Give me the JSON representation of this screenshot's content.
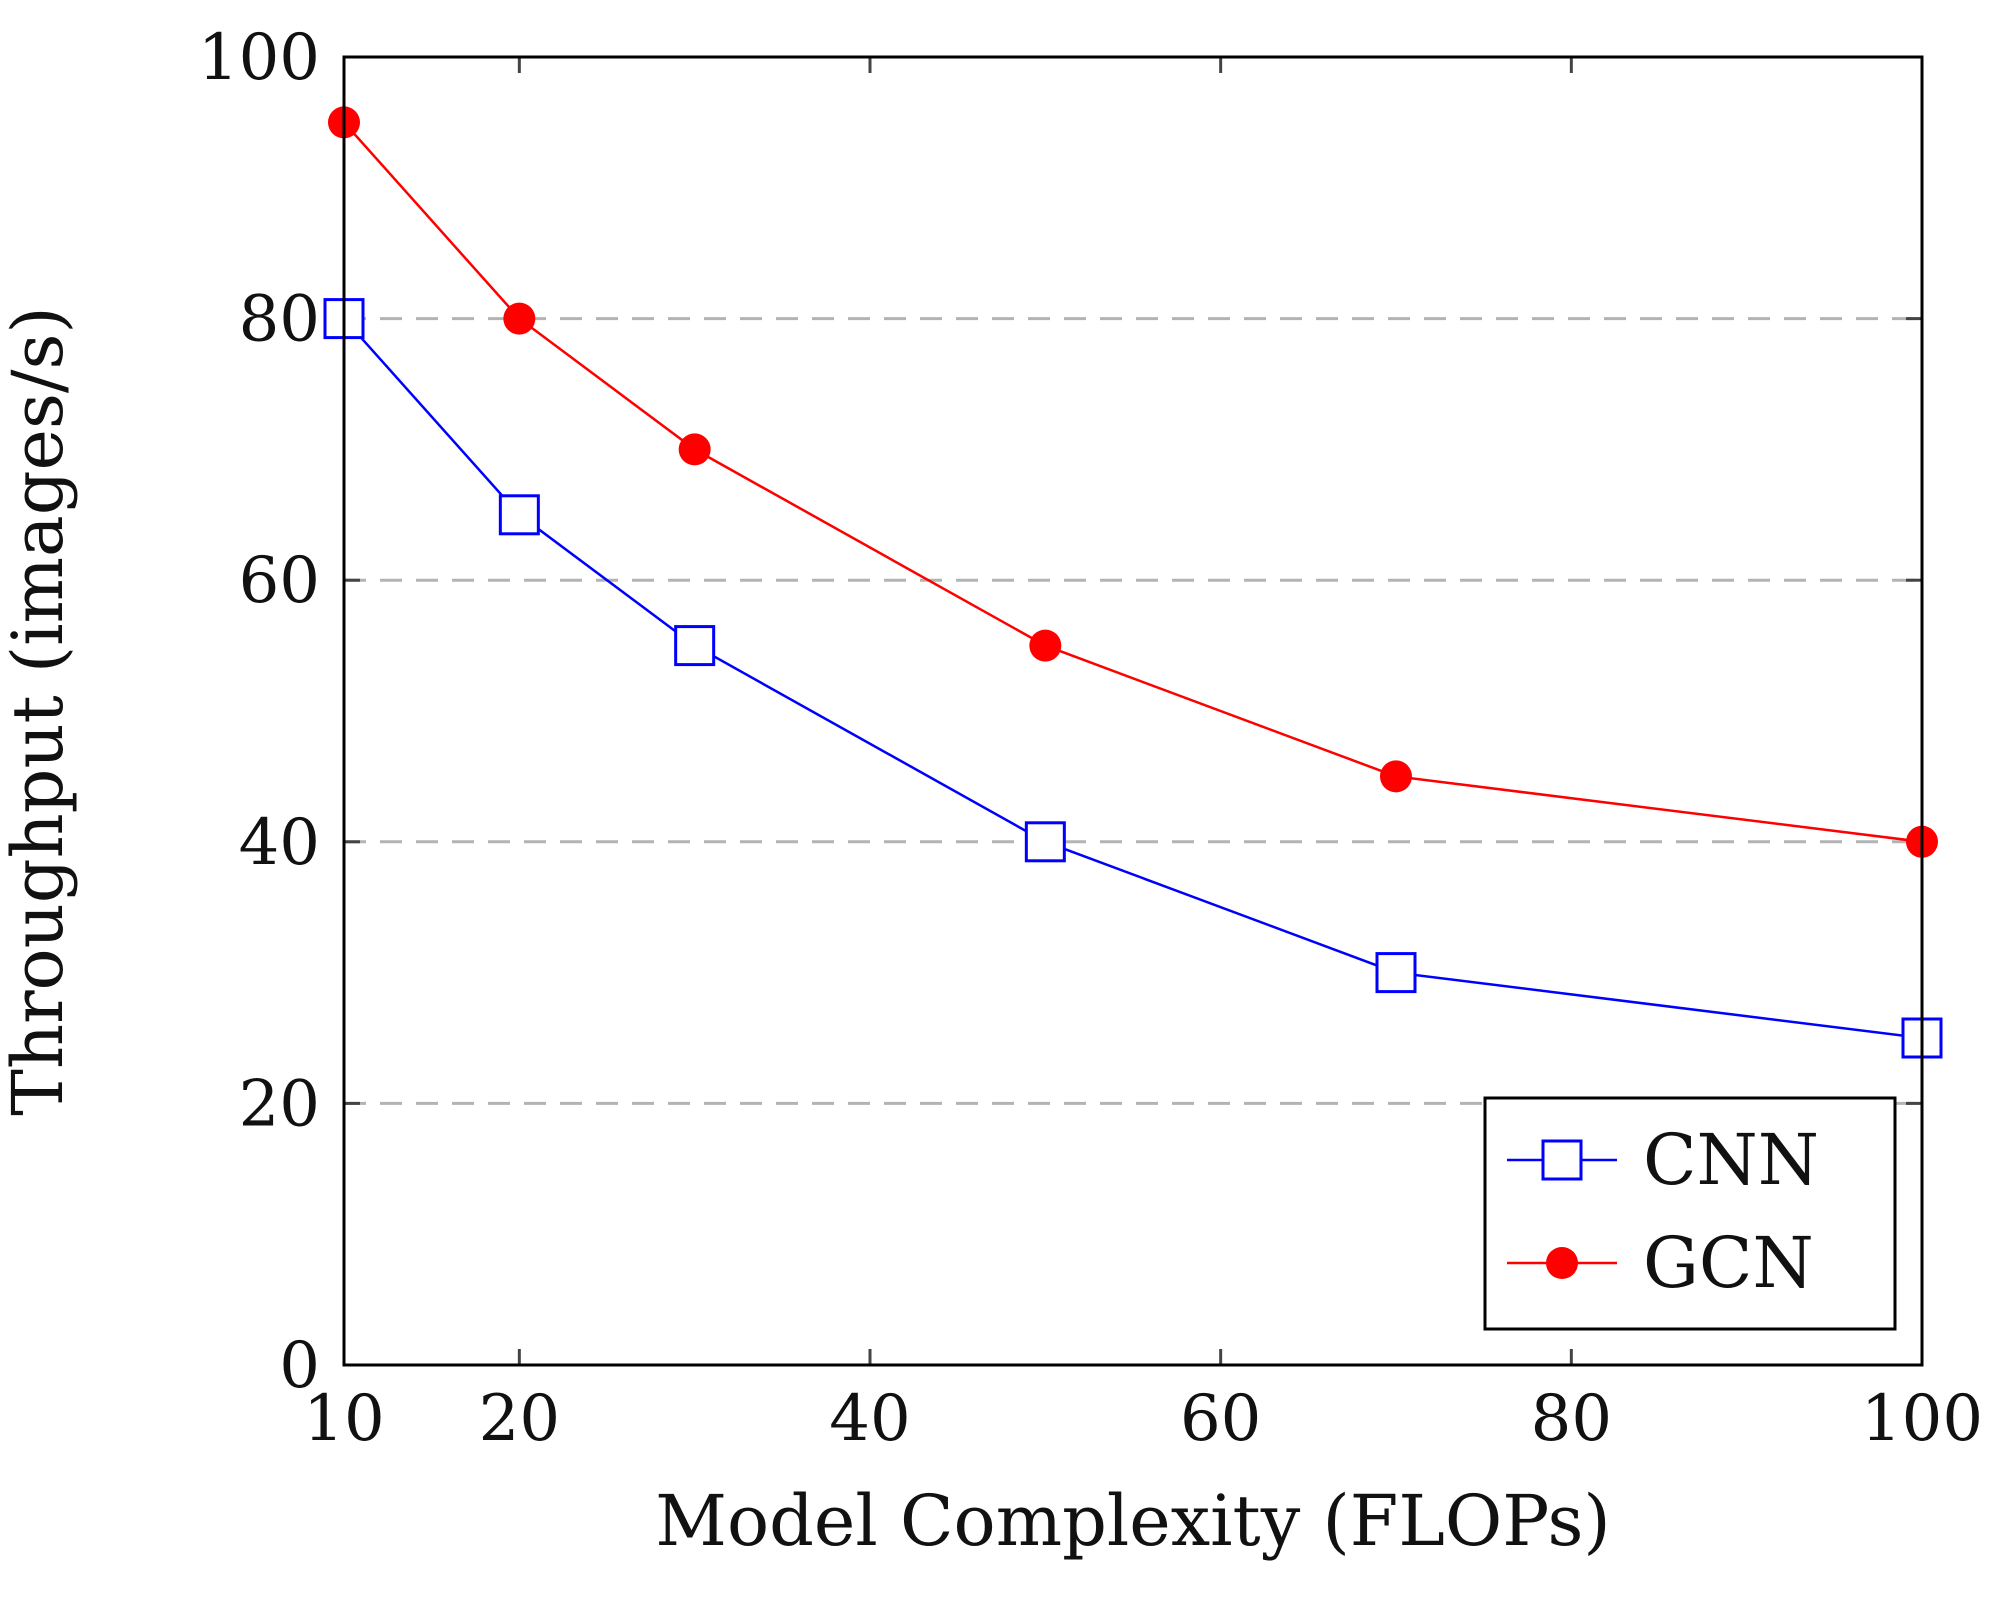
{
  "chart_data": {
    "type": "line",
    "title": "",
    "xlabel": "Model Complexity (FLOPs)",
    "ylabel": "Throughput (images/s)",
    "xlim": [
      10,
      100
    ],
    "ylim": [
      0,
      100
    ],
    "xticks": [
      10,
      20,
      40,
      60,
      80,
      100
    ],
    "yticks": [
      0,
      20,
      40,
      60,
      80,
      100
    ],
    "grid": "horizontal dashed",
    "legend_position": "bottom-right",
    "x": [
      10,
      20,
      30,
      50,
      70,
      100
    ],
    "series": [
      {
        "name": "CNN",
        "color": "#0000ff",
        "marker": "open-square",
        "values": [
          80,
          65,
          55,
          40,
          30,
          25
        ]
      },
      {
        "name": "GCN",
        "color": "#ff0000",
        "marker": "filled-circle",
        "values": [
          95,
          80,
          70,
          55,
          45,
          40
        ]
      }
    ]
  }
}
